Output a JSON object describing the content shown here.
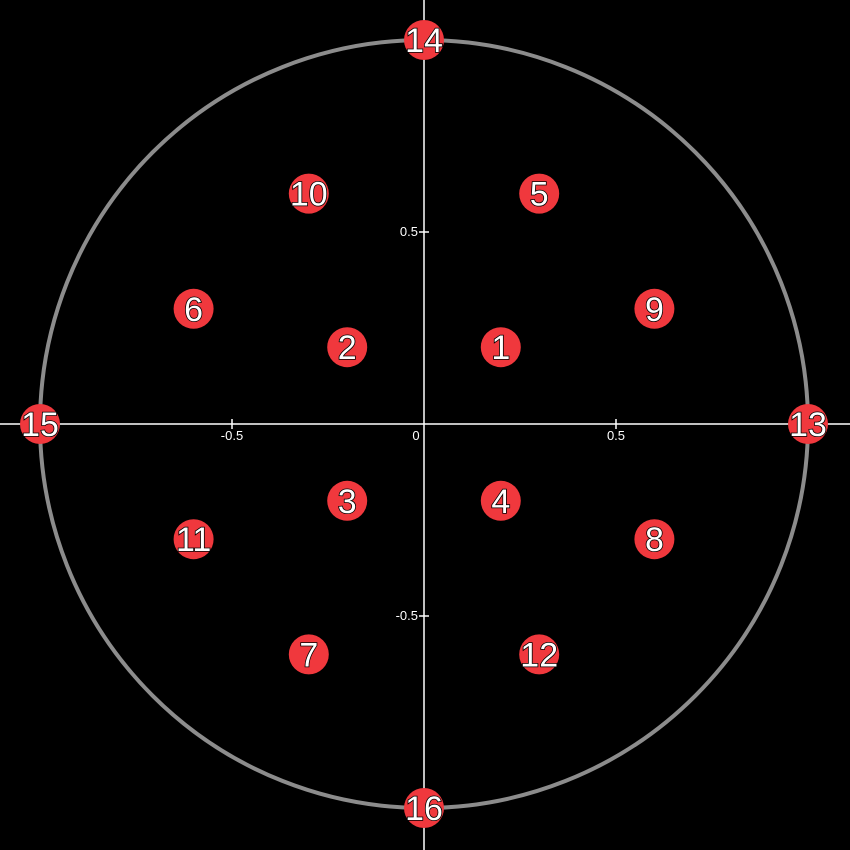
{
  "chart_data": {
    "type": "scatter",
    "title": "",
    "xlabel": "",
    "ylabel": "",
    "xlim": [
      -1.1,
      1.1
    ],
    "ylim": [
      -1.1,
      1.1
    ],
    "grid": false,
    "x_ticks": [
      {
        "value": -0.5,
        "label": "-0.5"
      },
      {
        "value": 0,
        "label": "0"
      },
      {
        "value": 0.5,
        "label": "0.5"
      }
    ],
    "y_ticks": [
      {
        "value": 0.5,
        "label": "0.5"
      },
      {
        "value": -0.5,
        "label": "-0.5"
      }
    ],
    "circle": {
      "center": [
        0,
        0
      ],
      "radius": 1,
      "color": "#8c8c8c"
    },
    "axis_color": "#ffffff",
    "background_color": "#000000",
    "point_color": "#f0383d",
    "points": [
      {
        "label": "1",
        "x": 0.2,
        "y": 0.2
      },
      {
        "label": "2",
        "x": -0.2,
        "y": 0.2
      },
      {
        "label": "3",
        "x": -0.2,
        "y": -0.2
      },
      {
        "label": "4",
        "x": 0.2,
        "y": -0.2
      },
      {
        "label": "5",
        "x": 0.3,
        "y": 0.6
      },
      {
        "label": "6",
        "x": -0.6,
        "y": 0.3
      },
      {
        "label": "7",
        "x": -0.3,
        "y": -0.6
      },
      {
        "label": "8",
        "x": 0.6,
        "y": -0.3
      },
      {
        "label": "9",
        "x": 0.6,
        "y": 0.3
      },
      {
        "label": "10",
        "x": -0.3,
        "y": 0.6
      },
      {
        "label": "11",
        "x": -0.6,
        "y": -0.3
      },
      {
        "label": "12",
        "x": 0.3,
        "y": -0.6
      },
      {
        "label": "13",
        "x": 1,
        "y": 0
      },
      {
        "label": "14",
        "x": 0,
        "y": 1
      },
      {
        "label": "15",
        "x": -1,
        "y": 0
      },
      {
        "label": "16",
        "x": 0,
        "y": -1
      }
    ]
  }
}
